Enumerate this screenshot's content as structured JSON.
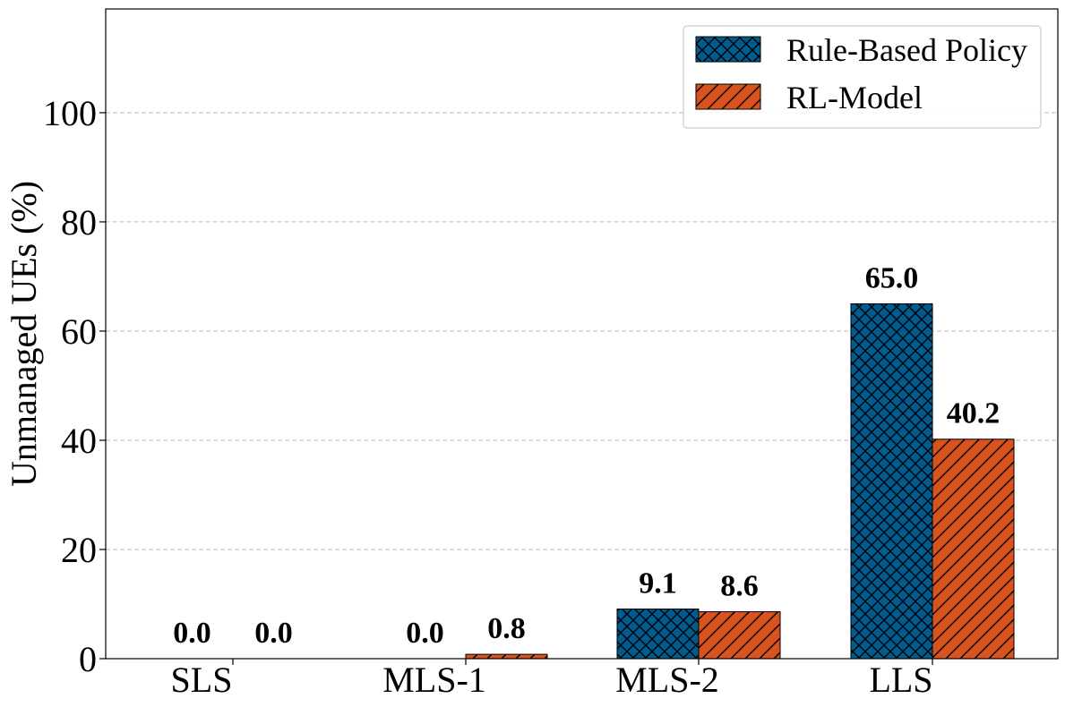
{
  "chart_data": {
    "type": "bar",
    "categories": [
      "SLS",
      "MLS-1",
      "MLS-2",
      "LLS"
    ],
    "series": [
      {
        "name": "Rule-Based Policy",
        "values": [
          0.0,
          0.0,
          9.1,
          65.0
        ],
        "labels": [
          "0.0",
          "0.0",
          "9.1",
          "65.0"
        ],
        "color": "#005c8f",
        "hatch": "crosshatch"
      },
      {
        "name": "RL-Model",
        "values": [
          0.0,
          0.8,
          8.6,
          40.2
        ],
        "labels": [
          "0.0",
          "0.8",
          "8.6",
          "40.2"
        ],
        "color": "#d9531e",
        "hatch": "diagonal"
      }
    ],
    "ylabel": "Unmanaged UEs (%)",
    "xlabel": "",
    "ylim": [
      0,
      119
    ],
    "yticks": [
      "0",
      "20",
      "40",
      "60",
      "80",
      "100"
    ],
    "grid": true,
    "legend_position": "top-right"
  }
}
